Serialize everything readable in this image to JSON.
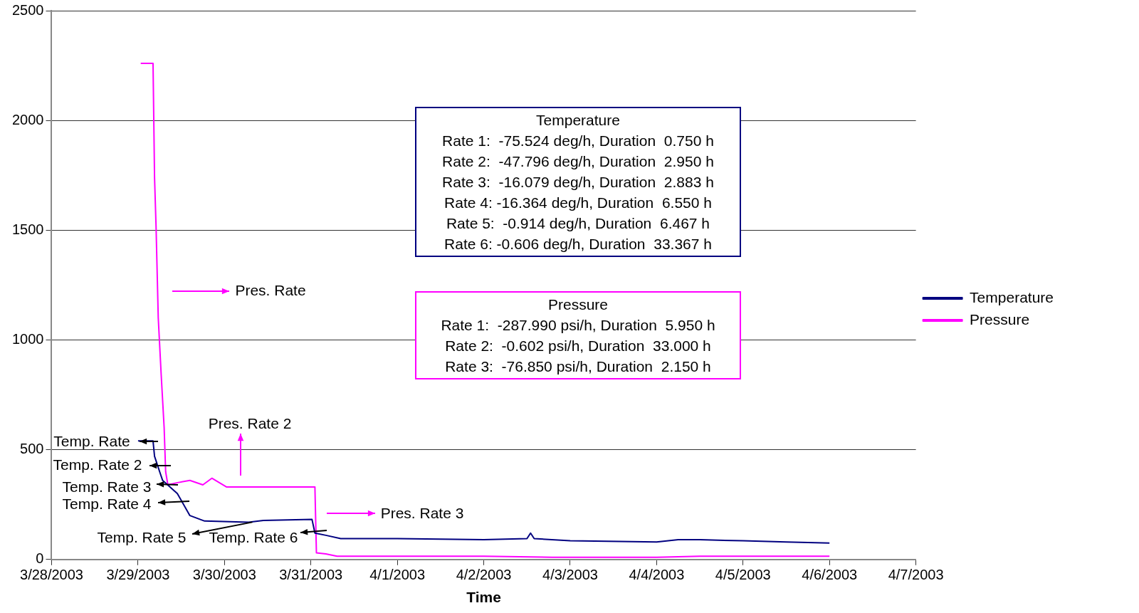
{
  "chart_data": {
    "type": "line",
    "xlabel": "Time",
    "legend": "right",
    "grid": "y",
    "line_style": "solid",
    "xlim": [
      "2003-03-28",
      "2003-04-07"
    ],
    "xticks": [
      {
        "value": "2003-03-28",
        "label": "3/28/2003"
      },
      {
        "value": "2003-03-29",
        "label": "3/29/2003"
      },
      {
        "value": "2003-03-30",
        "label": "3/30/2003"
      },
      {
        "value": "2003-03-31",
        "label": "3/31/2003"
      },
      {
        "value": "2003-04-01",
        "label": "4/1/2003"
      },
      {
        "value": "2003-04-02",
        "label": "4/2/2003"
      },
      {
        "value": "2003-04-03",
        "label": "4/3/2003"
      },
      {
        "value": "2003-04-04",
        "label": "4/4/2003"
      },
      {
        "value": "2003-04-05",
        "label": "4/5/2003"
      },
      {
        "value": "2003-04-06",
        "label": "4/6/2003"
      },
      {
        "value": "2003-04-07",
        "label": "4/7/2003"
      }
    ],
    "ylim": [
      0,
      2500
    ],
    "yticks": [
      0,
      500,
      1000,
      1500,
      2000,
      2500
    ],
    "series": [
      {
        "name": "Temperature",
        "color": "#000080",
        "x": [
          "2003-03-29T00:00",
          "2003-03-29T04:10",
          "2003-03-29T04:35",
          "2003-03-29T06:00",
          "2003-03-29T06:50",
          "2003-03-29T10:55",
          "2003-03-29T14:24",
          "2003-03-29T18:29",
          "2003-03-30T06:43",
          "2003-03-30T10:48",
          "2003-03-31T00:18",
          "2003-03-31T01:07",
          "2003-03-31T04:10",
          "2003-03-31T08:17",
          "2003-04-01T00:00",
          "2003-04-02T00:00",
          "2003-04-02T12:00",
          "2003-04-02T13:00",
          "2003-04-02T14:00",
          "2003-04-03T00:00",
          "2003-04-04T00:00",
          "2003-04-04T06:00",
          "2003-04-04T12:00",
          "2003-04-05T00:00",
          "2003-04-05T12:00",
          "2003-04-06T00:00"
        ],
        "values": [
          540,
          540,
          470,
          400,
          360,
          300,
          200,
          175,
          170,
          178,
          183,
          120,
          110,
          95,
          95,
          90,
          95,
          120,
          95,
          85,
          80,
          90,
          90,
          85,
          80,
          75
        ]
      },
      {
        "name": "Pressure",
        "color": "#ff00ff",
        "x": [
          "2003-03-29T00:45",
          "2003-03-29T04:10",
          "2003-03-29T04:35",
          "2003-03-29T05:00",
          "2003-03-29T05:37",
          "2003-03-29T06:26",
          "2003-03-29T07:15",
          "2003-03-29T07:40",
          "2003-03-29T08:17",
          "2003-03-29T11:00",
          "2003-03-29T14:24",
          "2003-03-29T18:00",
          "2003-03-29T20:30",
          "2003-03-30T00:37",
          "2003-03-30T12:00",
          "2003-03-31T01:07",
          "2003-03-31T01:32",
          "2003-03-31T04:10",
          "2003-03-31T07:15",
          "2003-04-02T00:00",
          "2003-04-02T19:00",
          "2003-04-04T00:00",
          "2003-04-04T12:00",
          "2003-04-06T00:00"
        ],
        "values": [
          2260,
          2260,
          1740,
          1520,
          1100,
          840,
          600,
          400,
          340,
          350,
          360,
          340,
          370,
          330,
          330,
          330,
          30,
          25,
          15,
          15,
          10,
          10,
          15,
          15
        ]
      }
    ],
    "annotations": [
      "Temperature\nRate 1:  -75.524 deg/h, Duration  0.750 h\nRate 2:  -47.796 deg/h, Duration  2.950 h\nRate 3:  -16.079 deg/h, Duration  2.883 h\nRate 4: -16.364 deg/h, Duration  6.550 h\nRate 5:  -0.914 deg/h, Duration  6.467 h\nRate 6: -0.606 deg/h, Duration  33.367 h",
      "Pressure\nRate 1:  -287.990 psi/h, Duration  5.950 h\nRate 2:  -0.602 psi/h, Duration  33.000 h\nRate 3:  -76.850 psi/h, Duration  2.150 h",
      "Pres. Rate",
      "Pres. Rate 2",
      "Pres. Rate 3",
      "Temp. Rate",
      "Temp. Rate 2",
      "Temp. Rate 3",
      "Temp. Rate 4",
      {
        "text": "Temp. Rate 5",
        "x": "2003-03-30T07:45",
        "y": 170
      },
      "Temp. Rate 6"
    ]
  }
}
